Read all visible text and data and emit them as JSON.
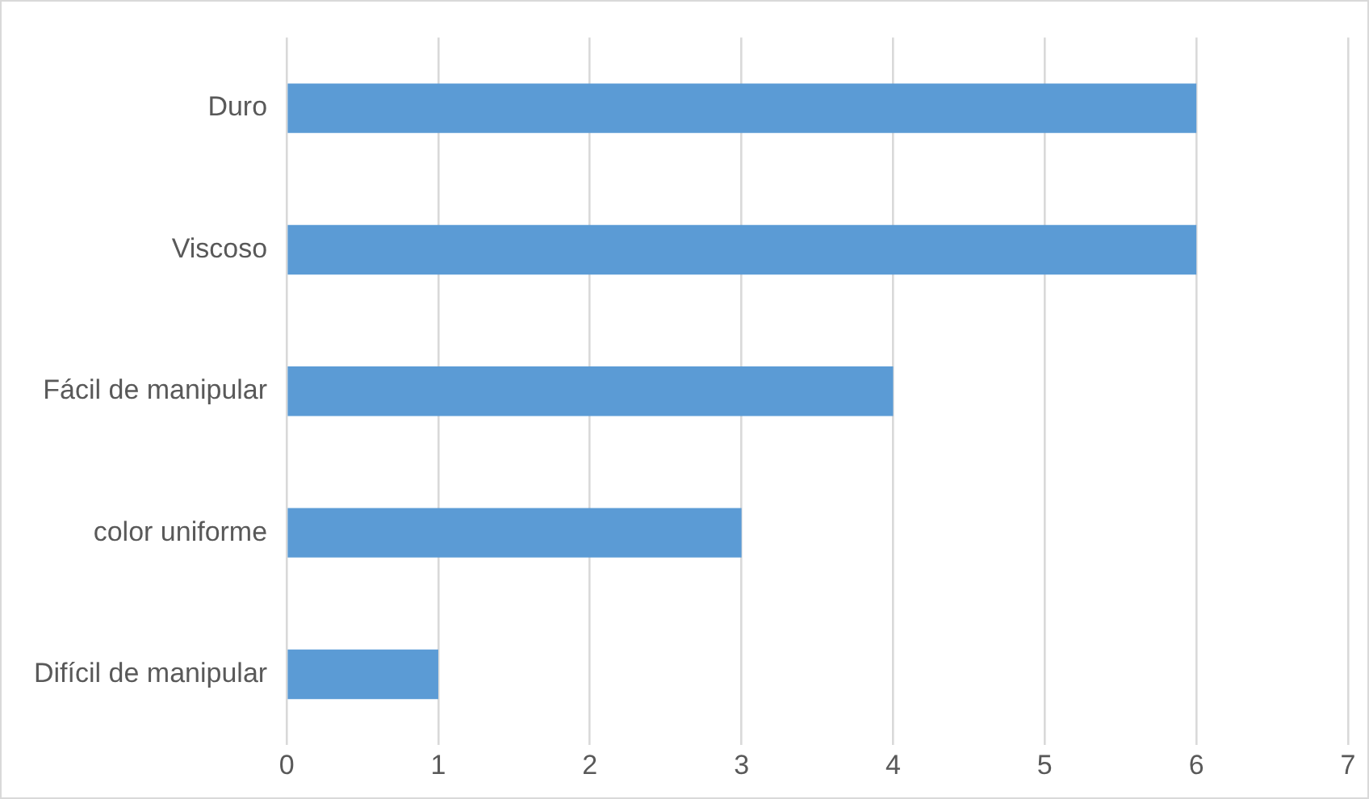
{
  "chart_data": {
    "type": "bar",
    "orientation": "horizontal",
    "categories": [
      "Duro",
      "Viscoso",
      "Fácil de manipular",
      "color uniforme",
      "Difícil de manipular"
    ],
    "values": [
      6,
      6,
      4,
      3,
      1
    ],
    "color": "#5b9bd5",
    "xlim": [
      0,
      7
    ],
    "xticks": [
      0,
      1,
      2,
      3,
      4,
      5,
      6,
      7
    ],
    "grid": "x",
    "legend": false
  }
}
